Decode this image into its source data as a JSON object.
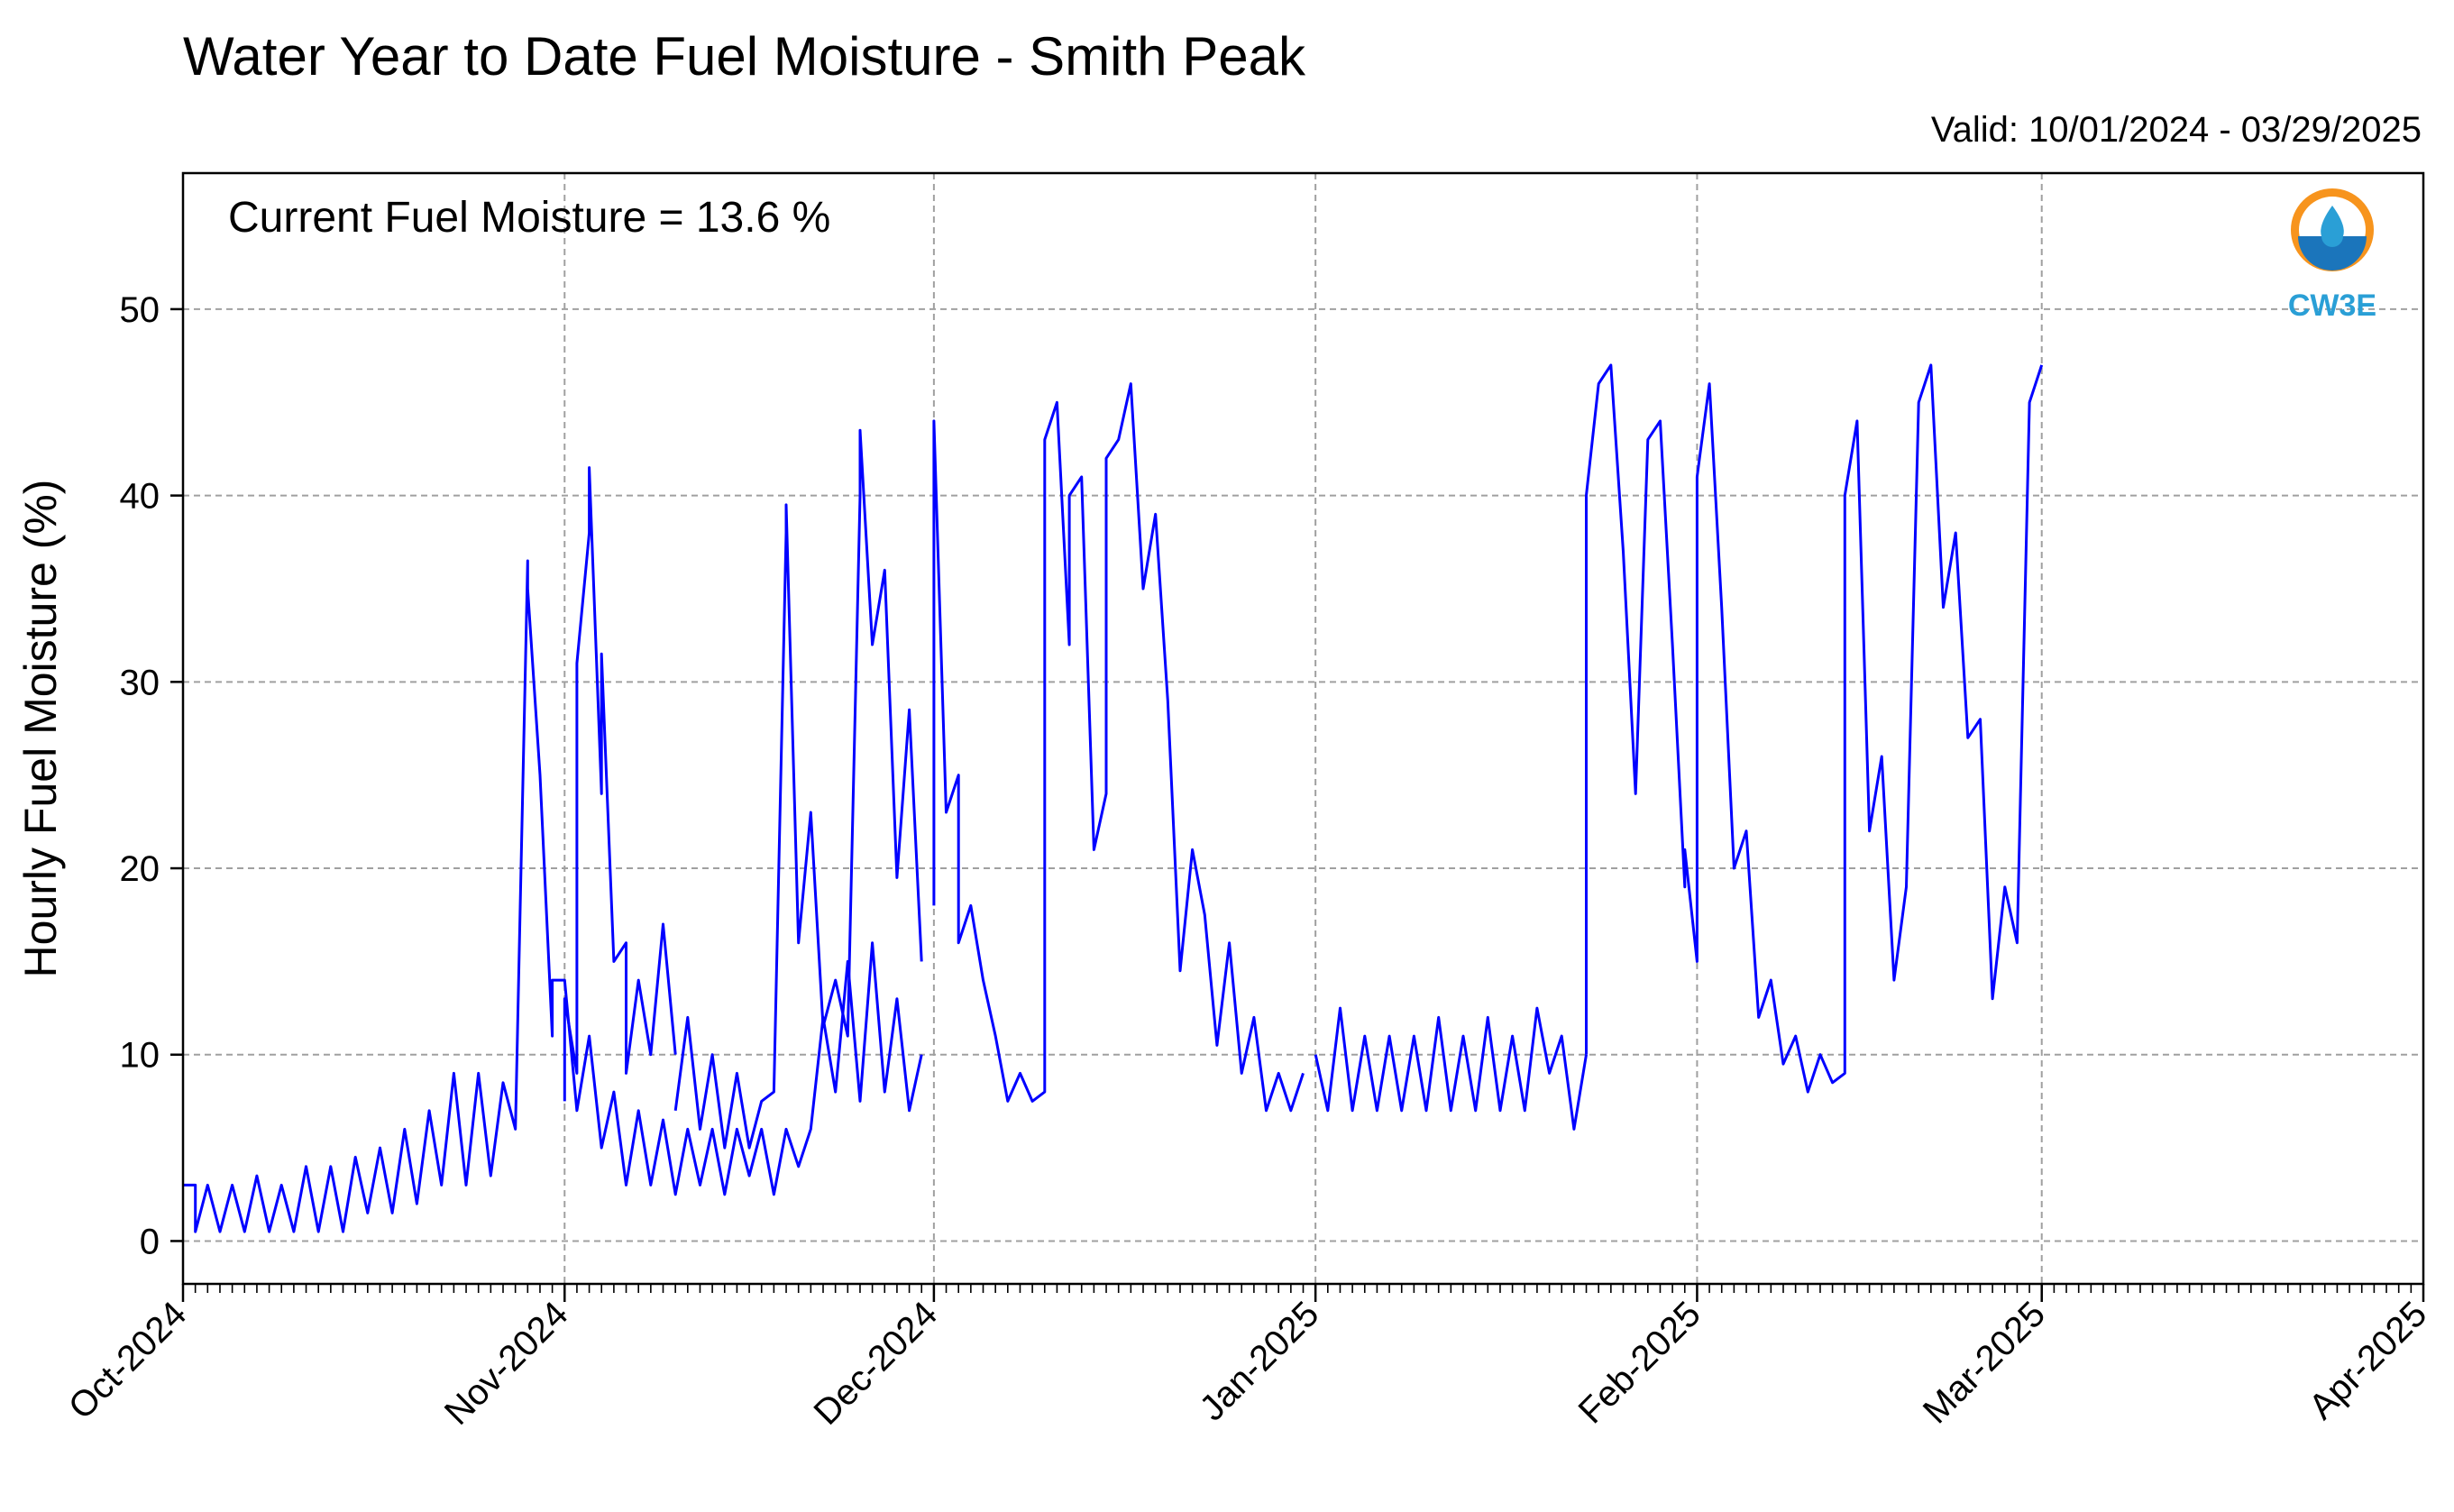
{
  "title": "Water Year to Date Fuel Moisture - Smith Peak",
  "valid_text": "Valid: 10/01/2024 - 03/29/2025",
  "annotation": "Current Fuel Moisture = 13.6 %",
  "logo": {
    "icon": "cw3e-logo-icon",
    "text": "CW3E",
    "colors": {
      "orange": "#F7941D",
      "blue": "#1B75BB",
      "teal": "#2A9FD6"
    }
  },
  "colors": {
    "line": "#0000FF",
    "grid": "#A0A0A0",
    "axis": "#000000"
  },
  "chart_data": {
    "type": "line",
    "title": "Water Year to Date Fuel Moisture - Smith Peak",
    "xlabel": "",
    "ylabel": "Hourly Fuel Moisture (%)",
    "ylim": [
      -2.3,
      57.3
    ],
    "yticks": [
      0,
      10,
      20,
      30,
      40,
      50
    ],
    "xlim": [
      "2024-10-01",
      "2025-04-01"
    ],
    "xticks": [
      "2024-10-01",
      "2024-11-01",
      "2024-12-01",
      "2025-01-01",
      "2025-02-01",
      "2025-03-01",
      "2025-04-01"
    ],
    "xtick_labels": [
      "Oct-2024",
      "Nov-2024",
      "Dec-2024",
      "Jan-2025",
      "Feb-2025",
      "Mar-2025",
      "Apr-2025"
    ],
    "grid": true,
    "series": [
      {
        "color": "#0000FF",
        "points": [
          [
            "2024-10-01",
            3
          ],
          [
            "2024-10-02",
            3
          ],
          [
            "2024-10-02",
            0.5
          ],
          [
            "2024-10-03",
            3
          ],
          [
            "2024-10-04",
            0.5
          ],
          [
            "2024-10-05",
            3
          ],
          [
            "2024-10-06",
            0.5
          ],
          [
            "2024-10-07",
            3.5
          ],
          [
            "2024-10-08",
            0.5
          ],
          [
            "2024-10-09",
            3
          ],
          [
            "2024-10-10",
            0.5
          ],
          [
            "2024-10-11",
            4
          ],
          [
            "2024-10-12",
            0.5
          ],
          [
            "2024-10-13",
            4
          ],
          [
            "2024-10-14",
            0.5
          ],
          [
            "2024-10-15",
            4.5
          ],
          [
            "2024-10-16",
            1.5
          ],
          [
            "2024-10-17",
            5
          ],
          [
            "2024-10-18",
            1.5
          ],
          [
            "2024-10-19",
            6
          ],
          [
            "2024-10-20",
            2
          ],
          [
            "2024-10-21",
            7
          ],
          [
            "2024-10-22",
            3
          ],
          [
            "2024-10-23",
            9
          ],
          [
            "2024-10-24",
            3
          ],
          [
            "2024-10-25",
            9
          ],
          [
            "2024-10-26",
            3.5
          ],
          [
            "2024-10-27",
            8.5
          ],
          [
            "2024-10-28",
            6
          ],
          [
            "2024-10-29",
            36.5
          ],
          [
            "2024-10-29",
            35
          ],
          [
            "2024-10-30",
            25
          ],
          [
            "2024-10-31",
            11
          ],
          [
            "2024-10-31",
            14
          ],
          [
            "2024-11-01",
            14
          ],
          [
            "2024-11-02",
            7
          ],
          [
            "2024-11-03",
            11
          ],
          [
            "2024-11-04",
            5
          ],
          [
            "2024-11-05",
            8
          ],
          [
            "2024-11-06",
            3
          ],
          [
            "2024-11-07",
            7
          ],
          [
            "2024-11-08",
            3
          ],
          [
            "2024-11-09",
            6.5
          ],
          [
            "2024-11-10",
            2.5
          ],
          [
            "2024-11-11",
            6
          ],
          [
            "2024-11-12",
            3
          ],
          [
            "2024-11-13",
            6
          ],
          [
            "2024-11-14",
            2.5
          ],
          [
            "2024-11-15",
            6
          ],
          [
            "2024-11-16",
            3.5
          ],
          [
            "2024-11-17",
            6
          ],
          [
            "2024-11-18",
            2.5
          ],
          [
            "2024-11-19",
            6
          ],
          [
            "2024-11-20",
            4
          ],
          [
            "2024-11-21",
            6
          ],
          [
            "2024-11-22",
            12
          ],
          [
            "2024-11-23",
            8
          ],
          [
            "2024-11-24",
            15
          ],
          [
            "2024-11-25",
            7.5
          ],
          [
            "2024-11-26",
            16
          ],
          [
            "2024-11-27",
            8
          ],
          [
            "2024-11-28",
            13
          ],
          [
            "2024-11-29",
            7
          ],
          [
            "2024-11-30",
            10
          ]
        ]
      },
      {
        "color": "#0000FF",
        "points": [
          [
            "2024-11-01",
            7.5
          ],
          [
            "2024-11-01",
            13
          ],
          [
            "2024-11-02",
            9
          ],
          [
            "2024-11-02",
            31
          ],
          [
            "2024-11-03",
            38
          ],
          [
            "2024-11-03",
            41.5
          ],
          [
            "2024-11-04",
            24
          ],
          [
            "2024-11-04",
            31.5
          ],
          [
            "2024-11-05",
            15
          ],
          [
            "2024-11-06",
            16
          ],
          [
            "2024-11-06",
            9
          ],
          [
            "2024-11-07",
            14
          ],
          [
            "2024-11-08",
            10
          ],
          [
            "2024-11-09",
            17
          ],
          [
            "2024-11-10",
            10
          ]
        ]
      },
      {
        "color": "#0000FF",
        "points": [
          [
            "2024-11-10",
            7
          ],
          [
            "2024-11-11",
            12
          ],
          [
            "2024-11-12",
            6
          ],
          [
            "2024-11-13",
            10
          ],
          [
            "2024-11-14",
            5
          ],
          [
            "2024-11-15",
            9
          ],
          [
            "2024-11-16",
            5
          ],
          [
            "2024-11-17",
            7.5
          ],
          [
            "2024-11-18",
            8
          ],
          [
            "2024-11-19",
            38
          ],
          [
            "2024-11-19",
            39.5
          ],
          [
            "2024-11-20",
            16
          ],
          [
            "2024-11-21",
            23
          ],
          [
            "2024-11-22",
            11.5
          ],
          [
            "2024-11-23",
            14
          ],
          [
            "2024-11-24",
            11
          ],
          [
            "2024-11-25",
            40
          ],
          [
            "2024-11-25",
            43.5
          ],
          [
            "2024-11-26",
            32
          ],
          [
            "2024-11-27",
            36
          ],
          [
            "2024-11-28",
            19.5
          ],
          [
            "2024-11-29",
            28.5
          ],
          [
            "2024-11-30",
            15
          ]
        ]
      },
      {
        "color": "#0000FF",
        "points": [
          [
            "2024-12-01",
            18
          ],
          [
            "2024-12-01",
            44
          ],
          [
            "2024-12-02",
            23
          ],
          [
            "2024-12-03",
            25
          ],
          [
            "2024-12-03",
            16
          ],
          [
            "2024-12-04",
            18
          ],
          [
            "2024-12-05",
            14
          ],
          [
            "2024-12-06",
            11
          ],
          [
            "2024-12-07",
            7.5
          ],
          [
            "2024-12-08",
            9
          ],
          [
            "2024-12-09",
            7.5
          ],
          [
            "2024-12-10",
            8
          ],
          [
            "2024-12-10",
            43
          ],
          [
            "2024-12-11",
            45
          ],
          [
            "2024-12-12",
            32
          ],
          [
            "2024-12-12",
            40
          ],
          [
            "2024-12-13",
            41
          ],
          [
            "2024-12-14",
            21
          ],
          [
            "2024-12-15",
            24
          ],
          [
            "2024-12-15",
            42
          ],
          [
            "2024-12-16",
            43
          ],
          [
            "2024-12-17",
            46
          ],
          [
            "2024-12-18",
            35
          ],
          [
            "2024-12-19",
            39
          ],
          [
            "2024-12-20",
            29
          ],
          [
            "2024-12-21",
            14.5
          ],
          [
            "2024-12-22",
            21
          ],
          [
            "2024-12-23",
            17.5
          ],
          [
            "2024-12-24",
            10.5
          ],
          [
            "2024-12-25",
            16
          ],
          [
            "2024-12-26",
            9
          ],
          [
            "2024-12-27",
            12
          ],
          [
            "2024-12-28",
            7
          ],
          [
            "2024-12-29",
            9
          ],
          [
            "2024-12-30",
            7
          ],
          [
            "2024-12-31",
            9
          ]
        ]
      },
      {
        "color": "#0000FF",
        "points": [
          [
            "2025-01-01",
            10
          ],
          [
            "2025-01-02",
            7
          ],
          [
            "2025-01-03",
            12.5
          ],
          [
            "2025-01-04",
            7
          ],
          [
            "2025-01-05",
            11
          ],
          [
            "2025-01-06",
            7
          ],
          [
            "2025-01-07",
            11
          ],
          [
            "2025-01-08",
            7
          ],
          [
            "2025-01-09",
            11
          ],
          [
            "2025-01-10",
            7
          ],
          [
            "2025-01-11",
            12
          ],
          [
            "2025-01-12",
            7
          ],
          [
            "2025-01-13",
            11
          ],
          [
            "2025-01-14",
            7
          ],
          [
            "2025-01-15",
            12
          ],
          [
            "2025-01-16",
            7
          ],
          [
            "2025-01-17",
            11
          ],
          [
            "2025-01-18",
            7
          ],
          [
            "2025-01-19",
            12.5
          ],
          [
            "2025-01-20",
            9
          ],
          [
            "2025-01-21",
            11
          ],
          [
            "2025-01-22",
            6
          ],
          [
            "2025-01-23",
            10
          ]
        ]
      },
      {
        "color": "#0000FF",
        "points": [
          [
            "2025-01-23",
            10
          ],
          [
            "2025-01-23",
            40
          ],
          [
            "2025-01-24",
            46
          ],
          [
            "2025-01-25",
            47
          ],
          [
            "2025-01-26",
            37
          ],
          [
            "2025-01-27",
            24
          ],
          [
            "2025-01-28",
            43
          ],
          [
            "2025-01-29",
            44
          ],
          [
            "2025-01-30",
            32
          ],
          [
            "2025-01-31",
            19
          ],
          [
            "2025-01-31",
            21
          ],
          [
            "2025-02-01",
            15
          ],
          [
            "2025-02-01",
            41
          ],
          [
            "2025-02-02",
            46
          ],
          [
            "2025-02-03",
            34
          ],
          [
            "2025-02-04",
            20
          ],
          [
            "2025-02-05",
            22
          ],
          [
            "2025-02-06",
            12
          ],
          [
            "2025-02-07",
            14
          ],
          [
            "2025-02-08",
            9.5
          ],
          [
            "2025-02-09",
            11
          ],
          [
            "2025-02-10",
            8
          ],
          [
            "2025-02-11",
            10
          ],
          [
            "2025-02-12",
            8.5
          ],
          [
            "2025-02-13",
            9
          ],
          [
            "2025-02-13",
            40
          ],
          [
            "2025-02-14",
            44
          ],
          [
            "2025-02-15",
            22
          ],
          [
            "2025-02-16",
            26
          ],
          [
            "2025-02-17",
            14
          ],
          [
            "2025-02-18",
            19
          ],
          [
            "2025-02-19",
            45
          ],
          [
            "2025-02-20",
            47
          ],
          [
            "2025-02-21",
            34
          ],
          [
            "2025-02-22",
            38
          ],
          [
            "2025-02-23",
            27
          ],
          [
            "2025-02-24",
            28
          ],
          [
            "2025-02-25",
            13
          ],
          [
            "2025-02-26",
            19
          ],
          [
            "2025-02-27",
            16
          ],
          [
            "2025-02-28",
            45
          ],
          [
            "2025-02-29",
            47
          ]
        ]
      }
    ]
  }
}
